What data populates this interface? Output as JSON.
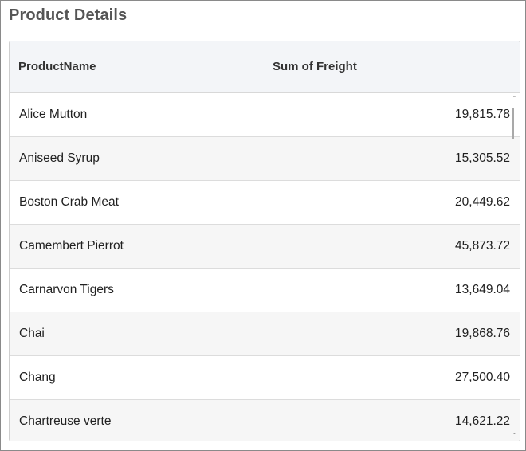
{
  "page": {
    "title": "Product Details"
  },
  "grid": {
    "columns": [
      "ProductName",
      "Sum of Freight"
    ],
    "rows": [
      {
        "name": "Alice Mutton",
        "freight": "19,815.78"
      },
      {
        "name": "Aniseed Syrup",
        "freight": "15,305.52"
      },
      {
        "name": "Boston Crab Meat",
        "freight": "20,449.62"
      },
      {
        "name": "Camembert Pierrot",
        "freight": "45,873.72"
      },
      {
        "name": "Carnarvon Tigers",
        "freight": "13,649.04"
      },
      {
        "name": "Chai",
        "freight": "19,868.76"
      },
      {
        "name": "Chang",
        "freight": "27,500.40"
      },
      {
        "name": "Chartreuse verte",
        "freight": "14,621.22"
      }
    ]
  },
  "icons": {
    "scroll_up": "chevron-up-icon",
    "scroll_down": "chevron-down-icon"
  }
}
